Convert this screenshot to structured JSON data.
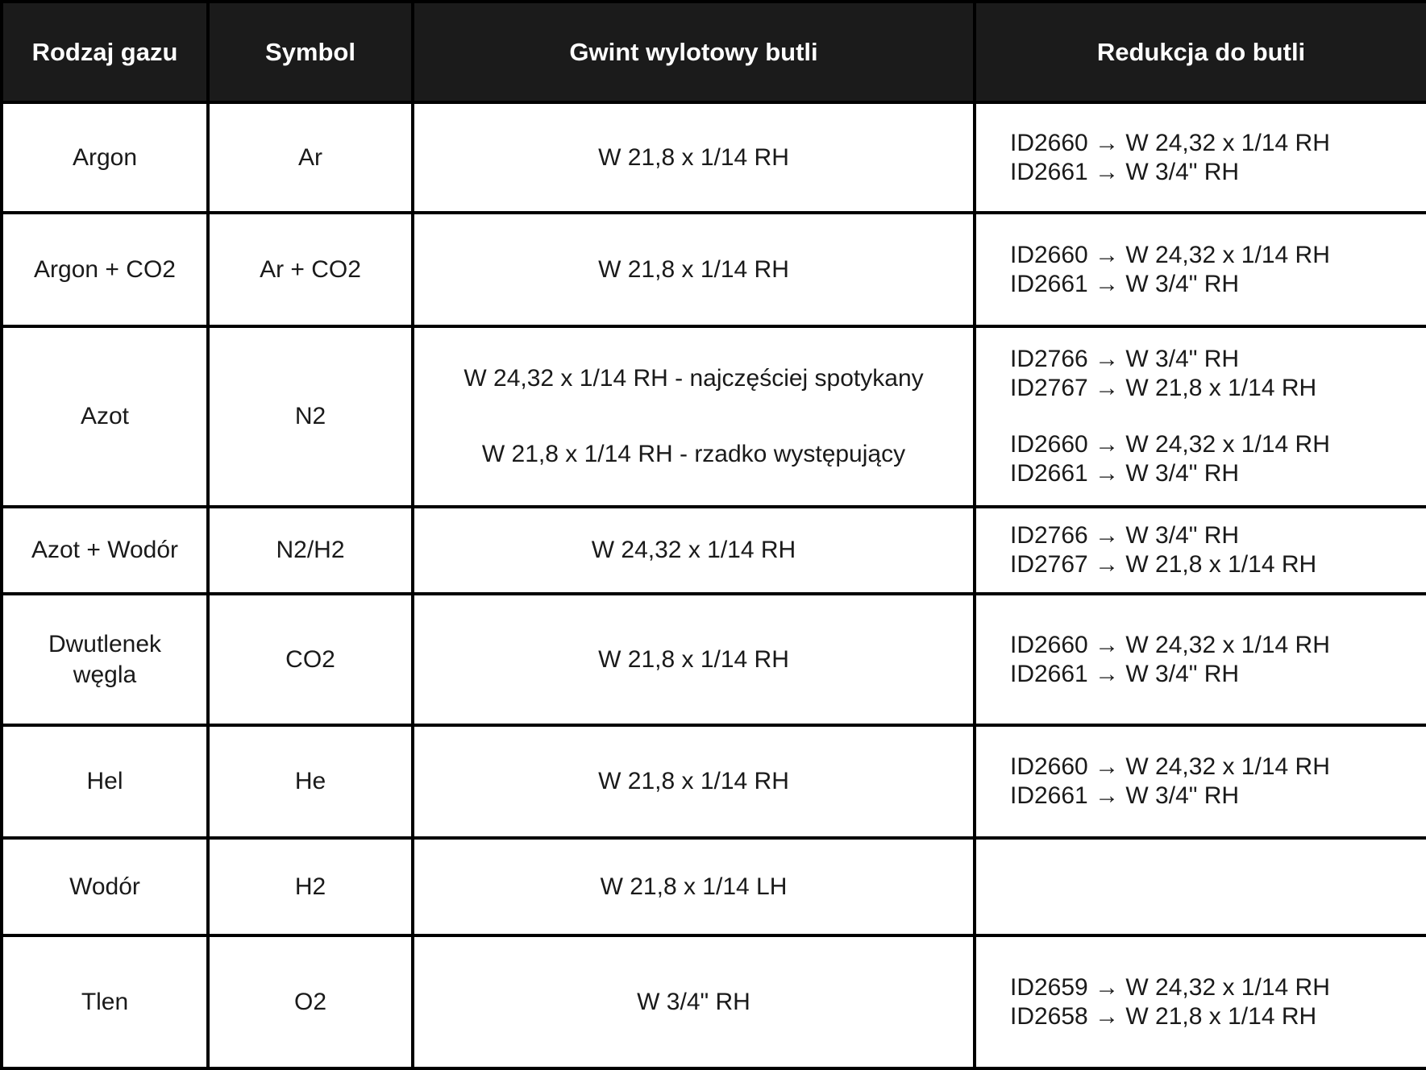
{
  "colors": {
    "header_bg": "#1b1b1b",
    "header_text": "#ffffff",
    "border": "#000000",
    "body_text": "#1a1a1a",
    "body_bg": "#ffffff"
  },
  "table": {
    "columns": [
      {
        "label": "Rodzaj gazu"
      },
      {
        "label": "Symbol"
      },
      {
        "label": "Gwint wylotowy butli"
      },
      {
        "label": "Redukcja do butli"
      }
    ],
    "rows": [
      {
        "gas": "Argon",
        "symbol": "Ar",
        "thread_paragraphs": [
          "W 21,8 x 1/14 RH"
        ],
        "reduction_groups": [
          [
            "ID2660 → W 24,32 x 1/14 RH",
            "ID2661 → W 3/4\" RH"
          ]
        ]
      },
      {
        "gas": "Argon + CO2",
        "symbol": "Ar + CO2",
        "thread_paragraphs": [
          "W 21,8 x 1/14 RH"
        ],
        "reduction_groups": [
          [
            "ID2660 → W 24,32 x 1/14 RH",
            "ID2661 → W 3/4\" RH"
          ]
        ]
      },
      {
        "gas": "Azot",
        "symbol": "N2",
        "thread_paragraphs": [
          "W 24,32 x 1/14 RH - najczęściej spotykany",
          "W 21,8 x 1/14 RH - rzadko występujący"
        ],
        "reduction_groups": [
          [
            "ID2766 → W 3/4\" RH",
            "ID2767 → W 21,8 x 1/14 RH"
          ],
          [
            "ID2660 → W 24,32 x 1/14 RH",
            "ID2661 → W 3/4\" RH"
          ]
        ]
      },
      {
        "gas": "Azot + Wodór",
        "symbol": "N2/H2",
        "thread_paragraphs": [
          "W 24,32 x 1/14 RH"
        ],
        "reduction_groups": [
          [
            "ID2766 → W 3/4\" RH",
            "ID2767 → W 21,8 x 1/14 RH"
          ]
        ]
      },
      {
        "gas": "Dwutlenek węgla",
        "symbol": "CO2",
        "thread_paragraphs": [
          "W 21,8 x 1/14 RH"
        ],
        "reduction_groups": [
          [
            "ID2660 → W 24,32 x 1/14 RH",
            "ID2661 → W 3/4\" RH"
          ]
        ]
      },
      {
        "gas": "Hel",
        "symbol": "He",
        "thread_paragraphs": [
          "W 21,8 x 1/14 RH"
        ],
        "reduction_groups": [
          [
            "ID2660 → W 24,32 x 1/14 RH",
            "ID2661 → W 3/4\" RH"
          ]
        ]
      },
      {
        "gas": "Wodór",
        "symbol": "H2",
        "thread_paragraphs": [
          "W 21,8 x 1/14 LH"
        ],
        "reduction_groups": []
      },
      {
        "gas": "Tlen",
        "symbol": "O2",
        "thread_paragraphs": [
          "W 3/4\" RH"
        ],
        "reduction_groups": [
          [
            "ID2659 → W 24,32 x 1/14 RH",
            "ID2658 → W 21,8 x 1/14 RH"
          ]
        ]
      }
    ]
  }
}
